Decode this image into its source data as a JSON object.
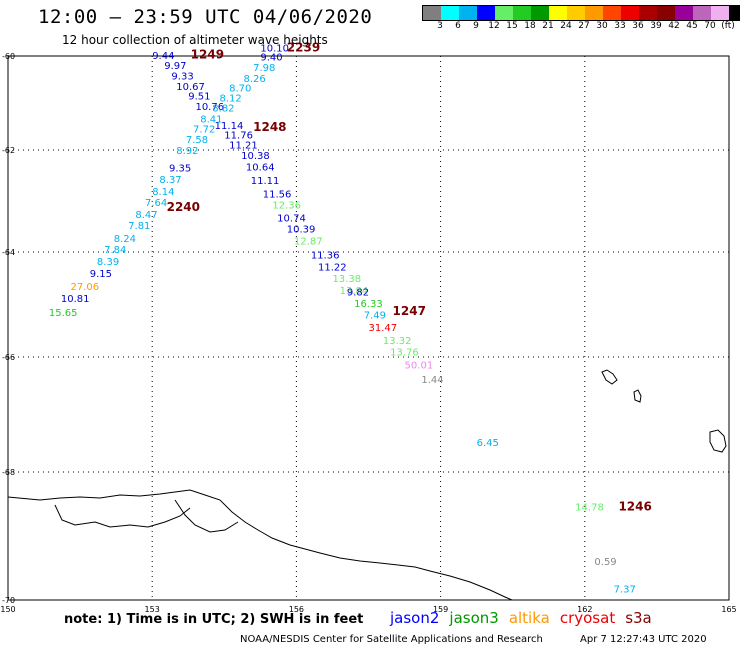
{
  "header": {
    "title": "12:00 — 23:59 UTC 04/06/2020",
    "subtitle": "12 hour collection of altimeter wave heights"
  },
  "legend": {
    "colors": [
      "#7f7f7f",
      "#00ffff",
      "#00b2ee",
      "#0000ff",
      "#66ee66",
      "#22cc22",
      "#009900",
      "#ffff00",
      "#ffcc00",
      "#ff9900",
      "#ff4500",
      "#ee0000",
      "#aa0000",
      "#880000",
      "#990099",
      "#bb66bb",
      "#f0b0f0",
      "#000000"
    ],
    "labels": [
      "3",
      "6",
      "9",
      "12",
      "15",
      "18",
      "21",
      "24",
      "27",
      "30",
      "33",
      "36",
      "39",
      "42",
      "45",
      "70",
      "(ft)"
    ]
  },
  "axes": {
    "y_ticks": [
      "-60",
      "-62",
      "-64",
      "-66",
      "-68",
      "-70"
    ],
    "x_ticks": [
      "150",
      "153",
      "156",
      "159",
      "162",
      "165"
    ]
  },
  "footer": {
    "note": "note: 1) Time is in UTC; 2) SWH is in feet",
    "missions": [
      {
        "name": "jason2",
        "color": "#0000ff"
      },
      {
        "name": "jason3",
        "color": "#009900"
      },
      {
        "name": "altika",
        "color": "#ff9900"
      },
      {
        "name": "cryosat",
        "color": "#ee0000"
      },
      {
        "name": "s3a",
        "color": "#880000"
      }
    ],
    "credit": "NOAA/NESDIS Center for Satellite Applications and Research",
    "timestamp": "Apr  7 12:27:43 UTC 2020"
  },
  "chart_data": {
    "type": "scatter",
    "x_range": [
      150,
      165
    ],
    "y_range": [
      -70,
      -60
    ],
    "time_labels": [
      {
        "text": "1249",
        "lon": 153.8,
        "lat": -60.05
      },
      {
        "text": "2239",
        "lon": 155.8,
        "lat": -59.9
      },
      {
        "text": "1248",
        "lon": 155.1,
        "lat": -61.6
      },
      {
        "text": "2240",
        "lon": 153.3,
        "lat": -63.2
      },
      {
        "text": "1247",
        "lon": 158.0,
        "lat": -65.2
      },
      {
        "text": "1246",
        "lon": 162.7,
        "lat": -68.6
      }
    ],
    "points": [
      {
        "v": "9.44",
        "lon": 153.0,
        "lat": -60.06,
        "c": "#0000cc"
      },
      {
        "v": "9.97",
        "lon": 153.25,
        "lat": -60.28,
        "c": "#0000cc"
      },
      {
        "v": "9.33",
        "lon": 153.4,
        "lat": -60.5,
        "c": "#0000cc"
      },
      {
        "v": "10.67",
        "lon": 153.5,
        "lat": -60.72,
        "c": "#0000cc"
      },
      {
        "v": "9.51",
        "lon": 153.75,
        "lat": -60.93,
        "c": "#0000cc"
      },
      {
        "v": "10.76",
        "lon": 153.9,
        "lat": -61.15,
        "c": "#0000cc"
      },
      {
        "v": "11.14",
        "lon": 154.3,
        "lat": -61.55,
        "c": "#0000cc"
      },
      {
        "v": "11.76",
        "lon": 154.5,
        "lat": -61.75,
        "c": "#0000cc"
      },
      {
        "v": "11.21",
        "lon": 154.6,
        "lat": -61.97,
        "c": "#0000cc"
      },
      {
        "v": "10.38",
        "lon": 154.85,
        "lat": -62.18,
        "c": "#0000cc"
      },
      {
        "v": "10.64",
        "lon": 154.95,
        "lat": -62.4,
        "c": "#0000cc"
      },
      {
        "v": "11.11",
        "lon": 155.05,
        "lat": -62.67,
        "c": "#0000cc"
      },
      {
        "v": "11.56",
        "lon": 155.3,
        "lat": -62.93,
        "c": "#0000cc"
      },
      {
        "v": "12.36",
        "lon": 155.5,
        "lat": -63.15,
        "c": "#66ee66"
      },
      {
        "v": "10.74",
        "lon": 155.6,
        "lat": -63.4,
        "c": "#0000cc"
      },
      {
        "v": "10.39",
        "lon": 155.8,
        "lat": -63.62,
        "c": "#0000cc"
      },
      {
        "v": "12.87",
        "lon": 155.95,
        "lat": -63.85,
        "c": "#66ee66"
      },
      {
        "v": "11.36",
        "lon": 156.3,
        "lat": -64.12,
        "c": "#0000cc"
      },
      {
        "v": "11.22",
        "lon": 156.45,
        "lat": -64.35,
        "c": "#0000cc"
      },
      {
        "v": "13.38",
        "lon": 156.75,
        "lat": -64.57,
        "c": "#66ee66"
      },
      {
        "v": "13.84",
        "lon": 156.9,
        "lat": -64.8,
        "c": "#66ee66"
      },
      {
        "v": "9.82",
        "lon": 157.05,
        "lat": -64.83,
        "c": "#0000cc"
      },
      {
        "v": "16.33",
        "lon": 157.2,
        "lat": -65.05,
        "c": "#22cc22"
      },
      {
        "v": "7.49",
        "lon": 157.4,
        "lat": -65.27,
        "c": "#00b2ee"
      },
      {
        "v": "31.47",
        "lon": 157.5,
        "lat": -65.5,
        "c": "#ee0000"
      },
      {
        "v": "13.32",
        "lon": 157.8,
        "lat": -65.75,
        "c": "#66ee66"
      },
      {
        "v": "13.76",
        "lon": 157.95,
        "lat": -65.97,
        "c": "#66ee66"
      },
      {
        "v": "50.01",
        "lon": 158.25,
        "lat": -66.2,
        "c": "#ee88ee"
      },
      {
        "v": "1.44",
        "lon": 158.6,
        "lat": -66.45,
        "c": "#888888"
      },
      {
        "v": "6.45",
        "lon": 159.75,
        "lat": -67.55,
        "c": "#00b2ee"
      },
      {
        "v": "14.78",
        "lon": 161.8,
        "lat": -68.6,
        "c": "#66ee66"
      },
      {
        "v": "0.59",
        "lon": 162.2,
        "lat": -69.45,
        "c": "#888888"
      },
      {
        "v": "7.37",
        "lon": 162.6,
        "lat": -69.88,
        "c": "#00b2ee"
      },
      {
        "v": "10.10",
        "lon": 155.25,
        "lat": -59.9,
        "c": "#0000cc"
      },
      {
        "v": "9.40",
        "lon": 155.25,
        "lat": -60.1,
        "c": "#0000cc"
      },
      {
        "v": "7.98",
        "lon": 155.1,
        "lat": -60.32,
        "c": "#00b2ee"
      },
      {
        "v": "8.26",
        "lon": 154.9,
        "lat": -60.55,
        "c": "#00b2ee"
      },
      {
        "v": "8.70",
        "lon": 154.6,
        "lat": -60.75,
        "c": "#00b2ee"
      },
      {
        "v": "8.12",
        "lon": 154.4,
        "lat": -60.97,
        "c": "#00b2ee"
      },
      {
        "v": "8.82",
        "lon": 154.25,
        "lat": -61.18,
        "c": "#00b2ee"
      },
      {
        "v": "8.41",
        "lon": 154.0,
        "lat": -61.42,
        "c": "#00b2ee"
      },
      {
        "v": "7.72",
        "lon": 153.85,
        "lat": -61.63,
        "c": "#00b2ee"
      },
      {
        "v": "7.58",
        "lon": 153.7,
        "lat": -61.85,
        "c": "#00b2ee"
      },
      {
        "v": "8.92",
        "lon": 153.5,
        "lat": -62.08,
        "c": "#00b2ee"
      },
      {
        "v": "9.35",
        "lon": 153.35,
        "lat": -62.42,
        "c": "#0000cc"
      },
      {
        "v": "8.37",
        "lon": 153.15,
        "lat": -62.65,
        "c": "#00b2ee"
      },
      {
        "v": "8.14",
        "lon": 153.0,
        "lat": -62.88,
        "c": "#00b2ee"
      },
      {
        "v": "7.64",
        "lon": 152.85,
        "lat": -63.1,
        "c": "#00b2ee"
      },
      {
        "v": "8.47",
        "lon": 152.65,
        "lat": -63.33,
        "c": "#00b2ee"
      },
      {
        "v": "7.81",
        "lon": 152.5,
        "lat": -63.55,
        "c": "#00b2ee"
      },
      {
        "v": "8.24",
        "lon": 152.2,
        "lat": -63.8,
        "c": "#00b2ee"
      },
      {
        "v": "7.84",
        "lon": 152.0,
        "lat": -64.02,
        "c": "#00b2ee"
      },
      {
        "v": "8.39",
        "lon": 151.85,
        "lat": -64.25,
        "c": "#00b2ee"
      },
      {
        "v": "9.15",
        "lon": 151.7,
        "lat": -64.48,
        "c": "#0000cc"
      },
      {
        "v": "27.06",
        "lon": 151.3,
        "lat": -64.72,
        "c": "#ff9900"
      },
      {
        "v": "10.81",
        "lon": 151.1,
        "lat": -64.95,
        "c": "#0000cc"
      },
      {
        "v": "15.65",
        "lon": 150.85,
        "lat": -65.22,
        "c": "#22cc22"
      }
    ]
  }
}
